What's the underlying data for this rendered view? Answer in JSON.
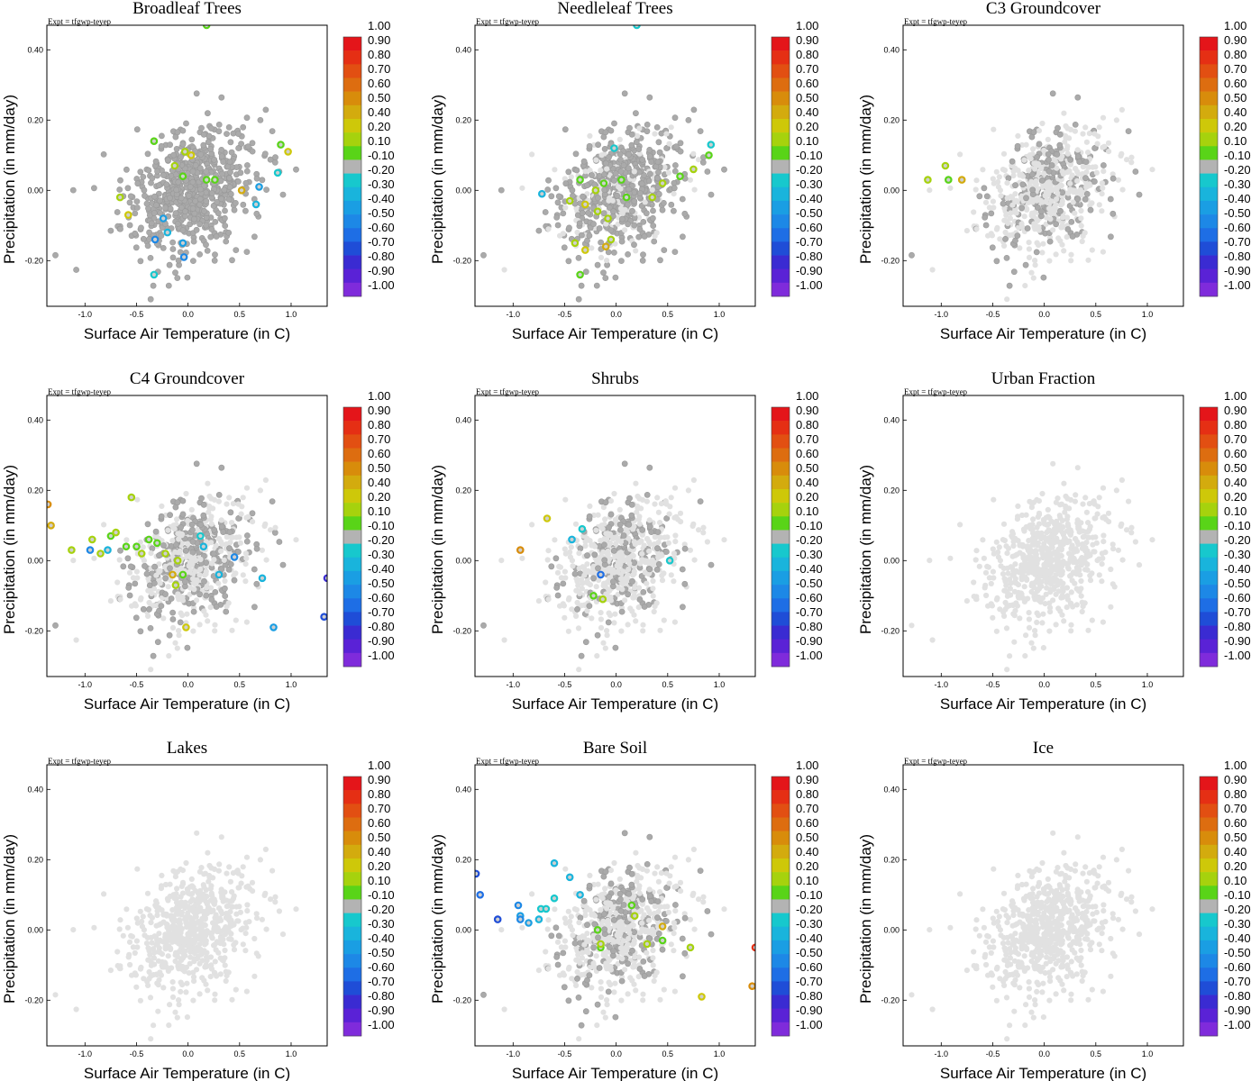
{
  "figure": {
    "expt_label": "Expt = tfgwp-teyep",
    "xlabel": "Surface Air Temperature (in C)",
    "ylabel": "Precipitation (in mm/day)"
  },
  "colors": {
    "background_points": "#e1e1e1",
    "neutral_points": "#aaaaaa"
  },
  "colorbar": {
    "labels": [
      "1.00",
      "0.90",
      "0.80",
      "0.70",
      "0.60",
      "0.50",
      "0.40",
      "0.20",
      "0.10",
      "-0.10",
      "-0.20",
      "-0.30",
      "-0.40",
      "-0.50",
      "-0.60",
      "-0.70",
      "-0.80",
      "-0.90",
      "-1.00"
    ],
    "colors": [
      "#e4151a",
      "#e52f14",
      "#e24f12",
      "#dd6d10",
      "#d88c0b",
      "#d3ab0e",
      "#cec809",
      "#a6d20d",
      "#59d418",
      "#b3b3b3",
      "#17c8cd",
      "#19b4dc",
      "#1a9ee3",
      "#1d88e6",
      "#1e6ee5",
      "#1f4dd7",
      "#3a2bd2",
      "#5a22d6",
      "#7f2bdb"
    ]
  },
  "chart_data": [
    {
      "type": "scatter",
      "title": "Broadleaf Trees",
      "xlim": [
        -1.37,
        1.35
      ],
      "ylim": [
        -0.33,
        0.47
      ],
      "xticks": [
        {
          "v": -1.0,
          "label": "-1.0"
        },
        {
          "v": -0.5,
          "label": "-0.5"
        },
        {
          "v": 0.0,
          "label": "0.0"
        },
        {
          "v": 0.5,
          "label": "0.5"
        },
        {
          "v": 1.0,
          "label": "1.0"
        }
      ],
      "yticks": [
        {
          "v": 0.4,
          "label": "0.40"
        },
        {
          "v": 0.2,
          "label": "0.20"
        },
        {
          "v": 0.0,
          "label": "0.00"
        },
        {
          "v": -0.2,
          "label": "-0.20"
        }
      ],
      "cloud": {
        "background_pct": 0,
        "neutral_pct": 100
      },
      "points": [
        {
          "x": -0.33,
          "y": 0.14,
          "v": 0.1
        },
        {
          "x": -0.66,
          "y": -0.02,
          "v": 0.3
        },
        {
          "x": -0.58,
          "y": -0.07,
          "v": 0.4
        },
        {
          "x": -0.13,
          "y": 0.07,
          "v": 0.2
        },
        {
          "x": -0.03,
          "y": 0.11,
          "v": 0.3
        },
        {
          "x": 0.03,
          "y": 0.1,
          "v": 0.4
        },
        {
          "x": -0.05,
          "y": 0.04,
          "v": 0.1
        },
        {
          "x": 0.18,
          "y": 0.03,
          "v": 0.1
        },
        {
          "x": 0.26,
          "y": 0.03,
          "v": 0.1
        },
        {
          "x": 0.52,
          "y": 0.0,
          "v": 0.5
        },
        {
          "x": 0.9,
          "y": 0.13,
          "v": 0.1
        },
        {
          "x": 0.97,
          "y": 0.11,
          "v": 0.4
        },
        {
          "x": 0.87,
          "y": 0.05,
          "v": -0.2
        },
        {
          "x": 0.69,
          "y": 0.01,
          "v": -0.4
        },
        {
          "x": 0.66,
          "y": -0.04,
          "v": -0.3
        },
        {
          "x": -0.24,
          "y": -0.08,
          "v": -0.4
        },
        {
          "x": -0.2,
          "y": -0.12,
          "v": -0.3
        },
        {
          "x": -0.32,
          "y": -0.14,
          "v": -0.5
        },
        {
          "x": -0.05,
          "y": -0.15,
          "v": -0.4
        },
        {
          "x": -0.04,
          "y": -0.19,
          "v": -0.5
        },
        {
          "x": -0.33,
          "y": -0.24,
          "v": -0.2
        },
        {
          "x": 0.18,
          "y": 0.47,
          "v": 0.1
        }
      ]
    },
    {
      "type": "scatter",
      "title": "Needleleaf Trees",
      "xlim": [
        -1.37,
        1.35
      ],
      "ylim": [
        -0.33,
        0.47
      ],
      "xticks": [
        {
          "v": -1.0,
          "label": "-1.0"
        },
        {
          "v": -0.5,
          "label": "-0.5"
        },
        {
          "v": 0.0,
          "label": "0.0"
        },
        {
          "v": 0.5,
          "label": "0.5"
        },
        {
          "v": 1.0,
          "label": "1.0"
        }
      ],
      "yticks": [
        {
          "v": 0.4,
          "label": "0.40"
        },
        {
          "v": 0.2,
          "label": "0.20"
        },
        {
          "v": 0.0,
          "label": "0.00"
        },
        {
          "v": -0.2,
          "label": "-0.20"
        }
      ],
      "cloud": {
        "background_pct": 25,
        "neutral_pct": 75
      },
      "points": [
        {
          "x": -0.35,
          "y": 0.03,
          "v": 0.1
        },
        {
          "x": -0.2,
          "y": 0.0,
          "v": 0.2
        },
        {
          "x": -0.12,
          "y": 0.02,
          "v": 0.1
        },
        {
          "x": 0.05,
          "y": 0.03,
          "v": 0.1
        },
        {
          "x": -0.45,
          "y": -0.03,
          "v": 0.3
        },
        {
          "x": -0.3,
          "y": -0.04,
          "v": 0.4
        },
        {
          "x": -0.18,
          "y": -0.06,
          "v": 0.2
        },
        {
          "x": -0.08,
          "y": -0.08,
          "v": 0.3
        },
        {
          "x": 0.1,
          "y": -0.02,
          "v": 0.1
        },
        {
          "x": 0.35,
          "y": -0.02,
          "v": 0.2
        },
        {
          "x": 0.45,
          "y": 0.02,
          "v": 0.3
        },
        {
          "x": 0.62,
          "y": 0.04,
          "v": 0.1
        },
        {
          "x": 0.75,
          "y": 0.06,
          "v": 0.2
        },
        {
          "x": 0.9,
          "y": 0.1,
          "v": 0.1
        },
        {
          "x": -0.4,
          "y": -0.15,
          "v": 0.2
        },
        {
          "x": -0.3,
          "y": -0.17,
          "v": 0.4
        },
        {
          "x": -0.1,
          "y": -0.16,
          "v": 0.5
        },
        {
          "x": -0.05,
          "y": -0.14,
          "v": 0.2
        },
        {
          "x": -0.35,
          "y": -0.24,
          "v": 0.1
        },
        {
          "x": -0.02,
          "y": 0.12,
          "v": -0.2
        },
        {
          "x": 0.92,
          "y": 0.13,
          "v": -0.2
        },
        {
          "x": -0.72,
          "y": -0.01,
          "v": -0.3
        },
        {
          "x": 0.2,
          "y": 0.47,
          "v": -0.2
        }
      ]
    },
    {
      "type": "scatter",
      "title": "C3 Groundcover",
      "xlim": [
        -1.37,
        1.35
      ],
      "ylim": [
        -0.33,
        0.47
      ],
      "xticks": [
        {
          "v": -1.0,
          "label": "-1.0"
        },
        {
          "v": -0.5,
          "label": "-0.5"
        },
        {
          "v": 0.0,
          "label": "0.0"
        },
        {
          "v": 0.5,
          "label": "0.5"
        },
        {
          "v": 1.0,
          "label": "1.0"
        }
      ],
      "yticks": [
        {
          "v": 0.4,
          "label": "0.40"
        },
        {
          "v": 0.2,
          "label": "0.20"
        },
        {
          "v": 0.0,
          "label": "0.00"
        },
        {
          "v": -0.2,
          "label": "-0.20"
        }
      ],
      "cloud": {
        "background_pct": 65,
        "neutral_pct": 35
      },
      "points": [
        {
          "x": -1.13,
          "y": 0.03,
          "v": 0.3
        },
        {
          "x": -0.96,
          "y": 0.07,
          "v": 0.3
        },
        {
          "x": -0.93,
          "y": 0.03,
          "v": 0.1
        },
        {
          "x": -0.8,
          "y": 0.03,
          "v": 0.5
        }
      ]
    },
    {
      "type": "scatter",
      "title": "C4 Groundcover",
      "xlim": [
        -1.37,
        1.35
      ],
      "ylim": [
        -0.33,
        0.47
      ],
      "xticks": [
        {
          "v": -1.0,
          "label": "-1.0"
        },
        {
          "v": -0.5,
          "label": "-0.5"
        },
        {
          "v": 0.0,
          "label": "0.0"
        },
        {
          "v": 0.5,
          "label": "0.5"
        },
        {
          "v": 1.0,
          "label": "1.0"
        }
      ],
      "yticks": [
        {
          "v": 0.4,
          "label": "0.40"
        },
        {
          "v": 0.2,
          "label": "0.20"
        },
        {
          "v": 0.0,
          "label": "0.00"
        },
        {
          "v": -0.2,
          "label": "-0.20"
        }
      ],
      "cloud": {
        "background_pct": 55,
        "neutral_pct": 45
      },
      "points": [
        {
          "x": -1.36,
          "y": 0.16,
          "v": 0.6
        },
        {
          "x": -1.33,
          "y": 0.1,
          "v": 0.5
        },
        {
          "x": -1.13,
          "y": 0.03,
          "v": 0.3
        },
        {
          "x": -0.93,
          "y": 0.06,
          "v": 0.3
        },
        {
          "x": -0.85,
          "y": 0.02,
          "v": 0.2
        },
        {
          "x": -0.75,
          "y": 0.07,
          "v": 0.1
        },
        {
          "x": -0.7,
          "y": 0.08,
          "v": 0.2
        },
        {
          "x": -0.6,
          "y": 0.04,
          "v": 0.1
        },
        {
          "x": -0.55,
          "y": 0.18,
          "v": 0.3
        },
        {
          "x": -0.5,
          "y": 0.04,
          "v": 0.1
        },
        {
          "x": -0.45,
          "y": 0.02,
          "v": 0.2
        },
        {
          "x": -0.38,
          "y": 0.06,
          "v": 0.1
        },
        {
          "x": -0.3,
          "y": 0.05,
          "v": 0.1
        },
        {
          "x": -0.22,
          "y": 0.02,
          "v": 0.2
        },
        {
          "x": -0.15,
          "y": -0.04,
          "v": 0.5
        },
        {
          "x": -0.12,
          "y": -0.07,
          "v": 0.2
        },
        {
          "x": -0.05,
          "y": -0.04,
          "v": 0.1
        },
        {
          "x": -0.02,
          "y": -0.19,
          "v": 0.4
        },
        {
          "x": -0.1,
          "y": 0.0,
          "v": 0.2
        },
        {
          "x": -0.95,
          "y": 0.03,
          "v": -0.5
        },
        {
          "x": -0.78,
          "y": 0.03,
          "v": -0.3
        },
        {
          "x": 0.12,
          "y": 0.07,
          "v": -0.2
        },
        {
          "x": 0.15,
          "y": 0.04,
          "v": -0.3
        },
        {
          "x": 0.3,
          "y": -0.04,
          "v": -0.3
        },
        {
          "x": 0.45,
          "y": 0.01,
          "v": -0.5
        },
        {
          "x": 0.72,
          "y": -0.05,
          "v": -0.3
        },
        {
          "x": 0.83,
          "y": -0.19,
          "v": -0.4
        },
        {
          "x": 1.35,
          "y": -0.05,
          "v": -0.8
        },
        {
          "x": 1.32,
          "y": -0.16,
          "v": -0.7
        }
      ]
    },
    {
      "type": "scatter",
      "title": "Shrubs",
      "xlim": [
        -1.37,
        1.35
      ],
      "ylim": [
        -0.33,
        0.47
      ],
      "xticks": [
        {
          "v": -1.0,
          "label": "-1.0"
        },
        {
          "v": -0.5,
          "label": "-0.5"
        },
        {
          "v": 0.0,
          "label": "0.0"
        },
        {
          "v": 0.5,
          "label": "0.5"
        },
        {
          "v": 1.0,
          "label": "1.0"
        }
      ],
      "yticks": [
        {
          "v": 0.4,
          "label": "0.40"
        },
        {
          "v": 0.2,
          "label": "0.20"
        },
        {
          "v": 0.0,
          "label": "0.00"
        },
        {
          "v": -0.2,
          "label": "-0.20"
        }
      ],
      "cloud": {
        "background_pct": 72,
        "neutral_pct": 28
      },
      "points": [
        {
          "x": -0.93,
          "y": 0.03,
          "v": 0.6
        },
        {
          "x": -0.67,
          "y": 0.12,
          "v": 0.4
        },
        {
          "x": -0.33,
          "y": 0.09,
          "v": -0.2
        },
        {
          "x": -0.43,
          "y": 0.06,
          "v": -0.3
        },
        {
          "x": -0.15,
          "y": -0.04,
          "v": -0.6
        },
        {
          "x": -0.22,
          "y": -0.1,
          "v": 0.1
        },
        {
          "x": -0.13,
          "y": -0.11,
          "v": 0.2
        },
        {
          "x": 0.52,
          "y": 0.0,
          "v": -0.2
        }
      ]
    },
    {
      "type": "scatter",
      "title": "Urban Fraction",
      "xlim": [
        -1.37,
        1.35
      ],
      "ylim": [
        -0.33,
        0.47
      ],
      "xticks": [
        {
          "v": -1.0,
          "label": "-1.0"
        },
        {
          "v": -0.5,
          "label": "-0.5"
        },
        {
          "v": 0.0,
          "label": "0.0"
        },
        {
          "v": 0.5,
          "label": "0.5"
        },
        {
          "v": 1.0,
          "label": "1.0"
        }
      ],
      "yticks": [
        {
          "v": 0.4,
          "label": "0.40"
        },
        {
          "v": 0.2,
          "label": "0.20"
        },
        {
          "v": 0.0,
          "label": "0.00"
        },
        {
          "v": -0.2,
          "label": "-0.20"
        }
      ],
      "cloud": {
        "background_pct": 100,
        "neutral_pct": 0
      },
      "points": []
    },
    {
      "type": "scatter",
      "title": "Lakes",
      "xlim": [
        -1.37,
        1.35
      ],
      "ylim": [
        -0.33,
        0.47
      ],
      "xticks": [
        {
          "v": -1.0,
          "label": "-1.0"
        },
        {
          "v": -0.5,
          "label": "-0.5"
        },
        {
          "v": 0.0,
          "label": "0.0"
        },
        {
          "v": 0.5,
          "label": "0.5"
        },
        {
          "v": 1.0,
          "label": "1.0"
        }
      ],
      "yticks": [
        {
          "v": 0.4,
          "label": "0.40"
        },
        {
          "v": 0.2,
          "label": "0.20"
        },
        {
          "v": 0.0,
          "label": "0.00"
        },
        {
          "v": -0.2,
          "label": "-0.20"
        }
      ],
      "cloud": {
        "background_pct": 100,
        "neutral_pct": 0
      },
      "points": []
    },
    {
      "type": "scatter",
      "title": "Bare Soil",
      "xlim": [
        -1.37,
        1.35
      ],
      "ylim": [
        -0.33,
        0.47
      ],
      "xticks": [
        {
          "v": -1.0,
          "label": "-1.0"
        },
        {
          "v": -0.5,
          "label": "-0.5"
        },
        {
          "v": 0.0,
          "label": "0.0"
        },
        {
          "v": 0.5,
          "label": "0.5"
        },
        {
          "v": 1.0,
          "label": "1.0"
        }
      ],
      "yticks": [
        {
          "v": 0.4,
          "label": "0.40"
        },
        {
          "v": 0.2,
          "label": "0.20"
        },
        {
          "v": 0.0,
          "label": "0.00"
        },
        {
          "v": -0.2,
          "label": "-0.20"
        }
      ],
      "cloud": {
        "background_pct": 65,
        "neutral_pct": 35
      },
      "points": [
        {
          "x": -1.36,
          "y": 0.16,
          "v": -0.7
        },
        {
          "x": -1.32,
          "y": 0.1,
          "v": -0.6
        },
        {
          "x": -1.15,
          "y": 0.03,
          "v": -0.7
        },
        {
          "x": -0.95,
          "y": 0.07,
          "v": -0.5
        },
        {
          "x": -0.93,
          "y": 0.04,
          "v": -0.4
        },
        {
          "x": -0.93,
          "y": 0.03,
          "v": -0.5
        },
        {
          "x": -0.85,
          "y": 0.02,
          "v": -0.4
        },
        {
          "x": -0.75,
          "y": 0.03,
          "v": -0.3
        },
        {
          "x": -0.73,
          "y": 0.06,
          "v": -0.2
        },
        {
          "x": -0.68,
          "y": 0.06,
          "v": -0.2
        },
        {
          "x": -0.6,
          "y": 0.09,
          "v": -0.2
        },
        {
          "x": -0.6,
          "y": 0.19,
          "v": -0.3
        },
        {
          "x": -0.45,
          "y": 0.15,
          "v": -0.3
        },
        {
          "x": -0.35,
          "y": 0.1,
          "v": -0.3
        },
        {
          "x": -0.18,
          "y": 0.0,
          "v": 0.1
        },
        {
          "x": -0.15,
          "y": -0.05,
          "v": 0.1
        },
        {
          "x": 0.15,
          "y": 0.07,
          "v": 0.1
        },
        {
          "x": 0.18,
          "y": 0.04,
          "v": 0.2
        },
        {
          "x": 0.3,
          "y": -0.04,
          "v": 0.3
        },
        {
          "x": 0.45,
          "y": -0.03,
          "v": 0.1
        },
        {
          "x": 0.45,
          "y": 0.01,
          "v": 0.5
        },
        {
          "x": 0.72,
          "y": -0.05,
          "v": 0.3
        },
        {
          "x": 0.83,
          "y": -0.19,
          "v": 0.4
        },
        {
          "x": 1.35,
          "y": -0.05,
          "v": 0.9
        },
        {
          "x": 1.32,
          "y": -0.16,
          "v": 0.6
        },
        {
          "x": -0.15,
          "y": -0.04,
          "v": 0.2
        }
      ]
    },
    {
      "type": "scatter",
      "title": "Ice",
      "xlim": [
        -1.37,
        1.35
      ],
      "ylim": [
        -0.33,
        0.47
      ],
      "xticks": [
        {
          "v": -1.0,
          "label": "-1.0"
        },
        {
          "v": -0.5,
          "label": "-0.5"
        },
        {
          "v": 0.0,
          "label": "0.0"
        },
        {
          "v": 0.5,
          "label": "0.5"
        },
        {
          "v": 1.0,
          "label": "1.0"
        }
      ],
      "yticks": [
        {
          "v": 0.4,
          "label": "0.40"
        },
        {
          "v": 0.2,
          "label": "0.20"
        },
        {
          "v": 0.0,
          "label": "0.00"
        },
        {
          "v": -0.2,
          "label": "-0.20"
        }
      ],
      "cloud": {
        "background_pct": 100,
        "neutral_pct": 0
      },
      "points": []
    }
  ]
}
